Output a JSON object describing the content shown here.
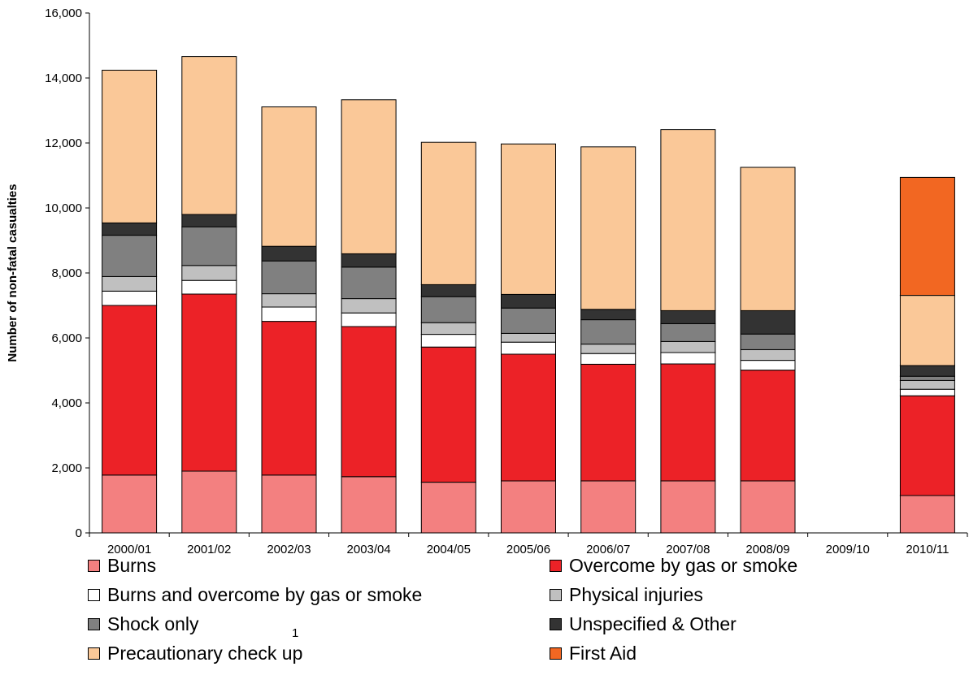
{
  "chart_data": {
    "type": "bar",
    "stacked": true,
    "title": "",
    "xlabel": "",
    "ylabel": "Number of non-fatal casualties",
    "ylim": [
      0,
      16000
    ],
    "yticks": [
      0,
      2000,
      4000,
      6000,
      8000,
      10000,
      12000,
      14000,
      16000
    ],
    "ytick_labels": [
      "0",
      "2,000",
      "4,000",
      "6,000",
      "8,000",
      "10,000",
      "12,000",
      "14,000",
      "16,000"
    ],
    "grid": false,
    "legend_position": "bottom",
    "categories": [
      "2000/01",
      "2001/02",
      "2002/03",
      "2003/04",
      "2004/05",
      "2005/06",
      "2006/07",
      "2007/08",
      "2008/09",
      "2009/10",
      "2010/11"
    ],
    "series": [
      {
        "name": "Burns",
        "color": "#f38080",
        "values": [
          1780,
          1900,
          1780,
          1730,
          1560,
          1600,
          1600,
          1600,
          1600,
          0,
          1150
        ]
      },
      {
        "name": "Overcome by gas or smoke",
        "color": "#ec2227",
        "values": [
          5220,
          5450,
          4730,
          4620,
          4160,
          3900,
          3590,
          3600,
          3410,
          0,
          3070
        ]
      },
      {
        "name": "Burns and overcome by gas or smoke",
        "color": "#ffffff",
        "values": [
          440,
          420,
          440,
          420,
          390,
          370,
          330,
          350,
          300,
          0,
          200
        ]
      },
      {
        "name": "Physical injuries",
        "color": "#c0c0c0",
        "values": [
          450,
          460,
          410,
          440,
          360,
          270,
          290,
          340,
          330,
          0,
          270
        ]
      },
      {
        "name": "Shock only",
        "color": "#808080",
        "values": [
          1270,
          1190,
          1010,
          970,
          800,
          780,
          750,
          550,
          480,
          0,
          130
        ]
      },
      {
        "name": "Unspecified & Other",
        "color": "#333333",
        "values": [
          380,
          380,
          450,
          410,
          370,
          420,
          320,
          400,
          720,
          0,
          330
        ]
      },
      {
        "name": "Precautionary check up",
        "color": "#fac898",
        "values": [
          4700,
          4860,
          4290,
          4740,
          4380,
          4630,
          5000,
          5570,
          4410,
          0,
          2160
        ]
      },
      {
        "name": "First Aid",
        "color": "#f26722",
        "values": [
          0,
          0,
          0,
          0,
          0,
          0,
          0,
          0,
          0,
          0,
          3630
        ]
      }
    ],
    "footnote_marker": "1"
  }
}
